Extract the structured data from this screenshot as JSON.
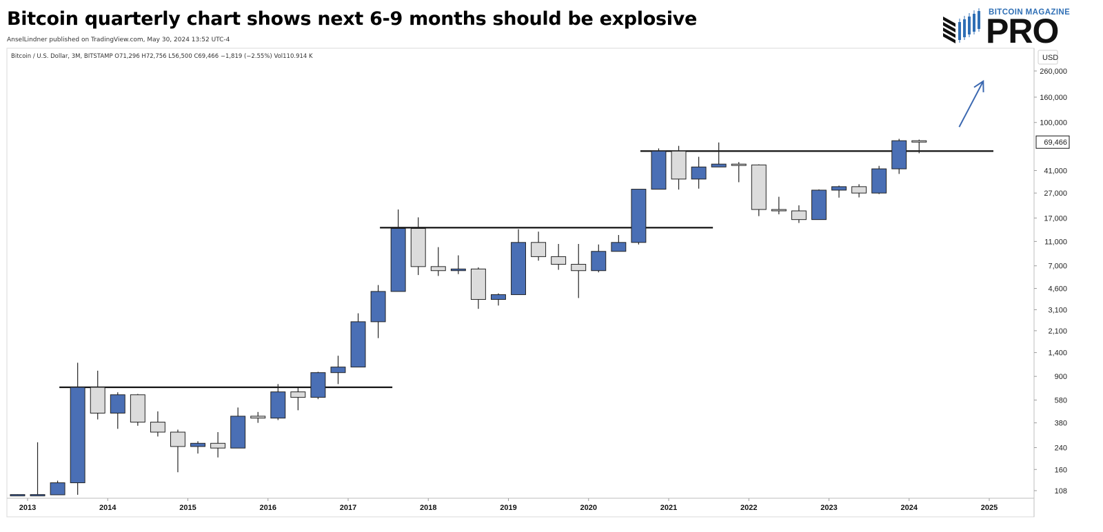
{
  "header": {
    "title": "Bitcoin quarterly chart shows next 6-9 months should be explosive",
    "published": "AnselLindner published on TradingView.com, May 30, 2024 13:52 UTC-4"
  },
  "logo": {
    "top_text": "BITCOIN MAGAZINE",
    "main_text": "PRO"
  },
  "colors": {
    "up": "#4a6fb5",
    "down": "#dcdcdc",
    "wick": "#222222",
    "arrow": "#3b68b0"
  },
  "chart_data": {
    "type": "candlestick",
    "legend": "Bitcoin / U.S. Dollar, 3M, BITSTAMP  O71,296  H72,756  L56,500  C69,466  −1,819 (−2.55%)  Vol110.914 K",
    "currency": "USD",
    "y_scale": "log",
    "ylim": [
      100,
      330000
    ],
    "y_ticks": [
      260000,
      160000,
      100000,
      41000,
      27000,
      17000,
      11000,
      7000,
      4600,
      3100,
      2100,
      1400,
      900,
      580,
      380,
      240,
      160,
      108
    ],
    "x_ticks": [
      "2013",
      "2014",
      "2015",
      "2016",
      "2017",
      "2018",
      "2019",
      "2020",
      "2021",
      "2022",
      "2023",
      "2024",
      "2025"
    ],
    "last_price": 69466,
    "last_price_label": "69,466",
    "candles": [
      {
        "t": 2012.75,
        "o": 100,
        "h": 101,
        "l": 100,
        "c": 100.5
      },
      {
        "t": 2013.0,
        "o": 100,
        "h": 265,
        "l": 100,
        "c": 100.5
      },
      {
        "t": 2013.25,
        "o": 100,
        "h": 130,
        "l": 100,
        "c": 125
      },
      {
        "t": 2013.5,
        "o": 125,
        "h": 1160,
        "l": 100,
        "c": 735
      },
      {
        "t": 2013.75,
        "o": 735,
        "h": 1000,
        "l": 405,
        "c": 455
      },
      {
        "t": 2014.0,
        "o": 455,
        "h": 670,
        "l": 340,
        "c": 640
      },
      {
        "t": 2014.25,
        "o": 640,
        "h": 650,
        "l": 360,
        "c": 385
      },
      {
        "t": 2014.5,
        "o": 385,
        "h": 470,
        "l": 295,
        "c": 320
      },
      {
        "t": 2014.75,
        "o": 320,
        "h": 335,
        "l": 152,
        "c": 245
      },
      {
        "t": 2015.0,
        "o": 245,
        "h": 270,
        "l": 215,
        "c": 260
      },
      {
        "t": 2015.25,
        "o": 260,
        "h": 320,
        "l": 200,
        "c": 238
      },
      {
        "t": 2015.5,
        "o": 238,
        "h": 505,
        "l": 238,
        "c": 430
      },
      {
        "t": 2015.75,
        "o": 430,
        "h": 465,
        "l": 380,
        "c": 415
      },
      {
        "t": 2016.0,
        "o": 415,
        "h": 780,
        "l": 400,
        "c": 675
      },
      {
        "t": 2016.25,
        "o": 675,
        "h": 725,
        "l": 480,
        "c": 610
      },
      {
        "t": 2016.5,
        "o": 610,
        "h": 980,
        "l": 590,
        "c": 965
      },
      {
        "t": 2016.75,
        "o": 965,
        "h": 1320,
        "l": 780,
        "c": 1070
      },
      {
        "t": 2017.0,
        "o": 1070,
        "h": 2900,
        "l": 1070,
        "c": 2480
      },
      {
        "t": 2017.25,
        "o": 2480,
        "h": 4900,
        "l": 1830,
        "c": 4350
      },
      {
        "t": 2017.5,
        "o": 4350,
        "h": 19900,
        "l": 4350,
        "c": 14000
      },
      {
        "t": 2017.75,
        "o": 14000,
        "h": 17200,
        "l": 5900,
        "c": 6900
      },
      {
        "t": 2018.0,
        "o": 6900,
        "h": 9900,
        "l": 5800,
        "c": 6400
      },
      {
        "t": 2018.25,
        "o": 6400,
        "h": 8500,
        "l": 6000,
        "c": 6600
      },
      {
        "t": 2018.5,
        "o": 6600,
        "h": 6800,
        "l": 3150,
        "c": 3750
      },
      {
        "t": 2018.75,
        "o": 3750,
        "h": 4200,
        "l": 3350,
        "c": 4100
      },
      {
        "t": 2019.0,
        "o": 4100,
        "h": 13800,
        "l": 4100,
        "c": 10800
      },
      {
        "t": 2019.25,
        "o": 10800,
        "h": 13200,
        "l": 7700,
        "c": 8300
      },
      {
        "t": 2019.5,
        "o": 8300,
        "h": 10500,
        "l": 6500,
        "c": 7200
      },
      {
        "t": 2019.75,
        "o": 7200,
        "h": 10500,
        "l": 3850,
        "c": 6400
      },
      {
        "t": 2020.0,
        "o": 6400,
        "h": 10400,
        "l": 6200,
        "c": 9150
      },
      {
        "t": 2020.25,
        "o": 9150,
        "h": 12400,
        "l": 9150,
        "c": 10800
      },
      {
        "t": 2020.5,
        "o": 10800,
        "h": 29000,
        "l": 10400,
        "c": 29000
      },
      {
        "t": 2020.75,
        "o": 29000,
        "h": 61800,
        "l": 29000,
        "c": 58800
      },
      {
        "t": 2021.0,
        "o": 58800,
        "h": 64800,
        "l": 28800,
        "c": 35000
      },
      {
        "t": 2021.25,
        "o": 35000,
        "h": 52900,
        "l": 29300,
        "c": 43800
      },
      {
        "t": 2021.5,
        "o": 43800,
        "h": 69000,
        "l": 43800,
        "c": 46200
      },
      {
        "t": 2021.75,
        "o": 46200,
        "h": 48000,
        "l": 33000,
        "c": 45500
      },
      {
        "t": 2022.0,
        "o": 45500,
        "h": 46000,
        "l": 17600,
        "c": 19900
      },
      {
        "t": 2022.25,
        "o": 19900,
        "h": 25200,
        "l": 18200,
        "c": 19400
      },
      {
        "t": 2022.5,
        "o": 19400,
        "h": 21500,
        "l": 15500,
        "c": 16500
      },
      {
        "t": 2022.75,
        "o": 16500,
        "h": 28900,
        "l": 16500,
        "c": 28500
      },
      {
        "t": 2023.0,
        "o": 28500,
        "h": 31000,
        "l": 24800,
        "c": 30400
      },
      {
        "t": 2023.25,
        "o": 30400,
        "h": 31800,
        "l": 24900,
        "c": 27000
      },
      {
        "t": 2023.5,
        "o": 27000,
        "h": 44700,
        "l": 26500,
        "c": 42300
      },
      {
        "t": 2023.75,
        "o": 42300,
        "h": 73800,
        "l": 38500,
        "c": 71300
      },
      {
        "t": 2024.0,
        "o": 71296,
        "h": 72756,
        "l": 56500,
        "c": 69466
      }
    ],
    "horizontal_lines": [
      {
        "price": 735,
        "from": 2013.5,
        "to": 2017.5
      },
      {
        "price": 14200,
        "from": 2017.5,
        "to": 2021.5
      },
      {
        "price": 58800,
        "from": 2020.75,
        "to": 2025.0
      }
    ],
    "arrow": {
      "from": [
        2024.5,
        92000
      ],
      "to": [
        2024.8,
        215000
      ]
    }
  }
}
